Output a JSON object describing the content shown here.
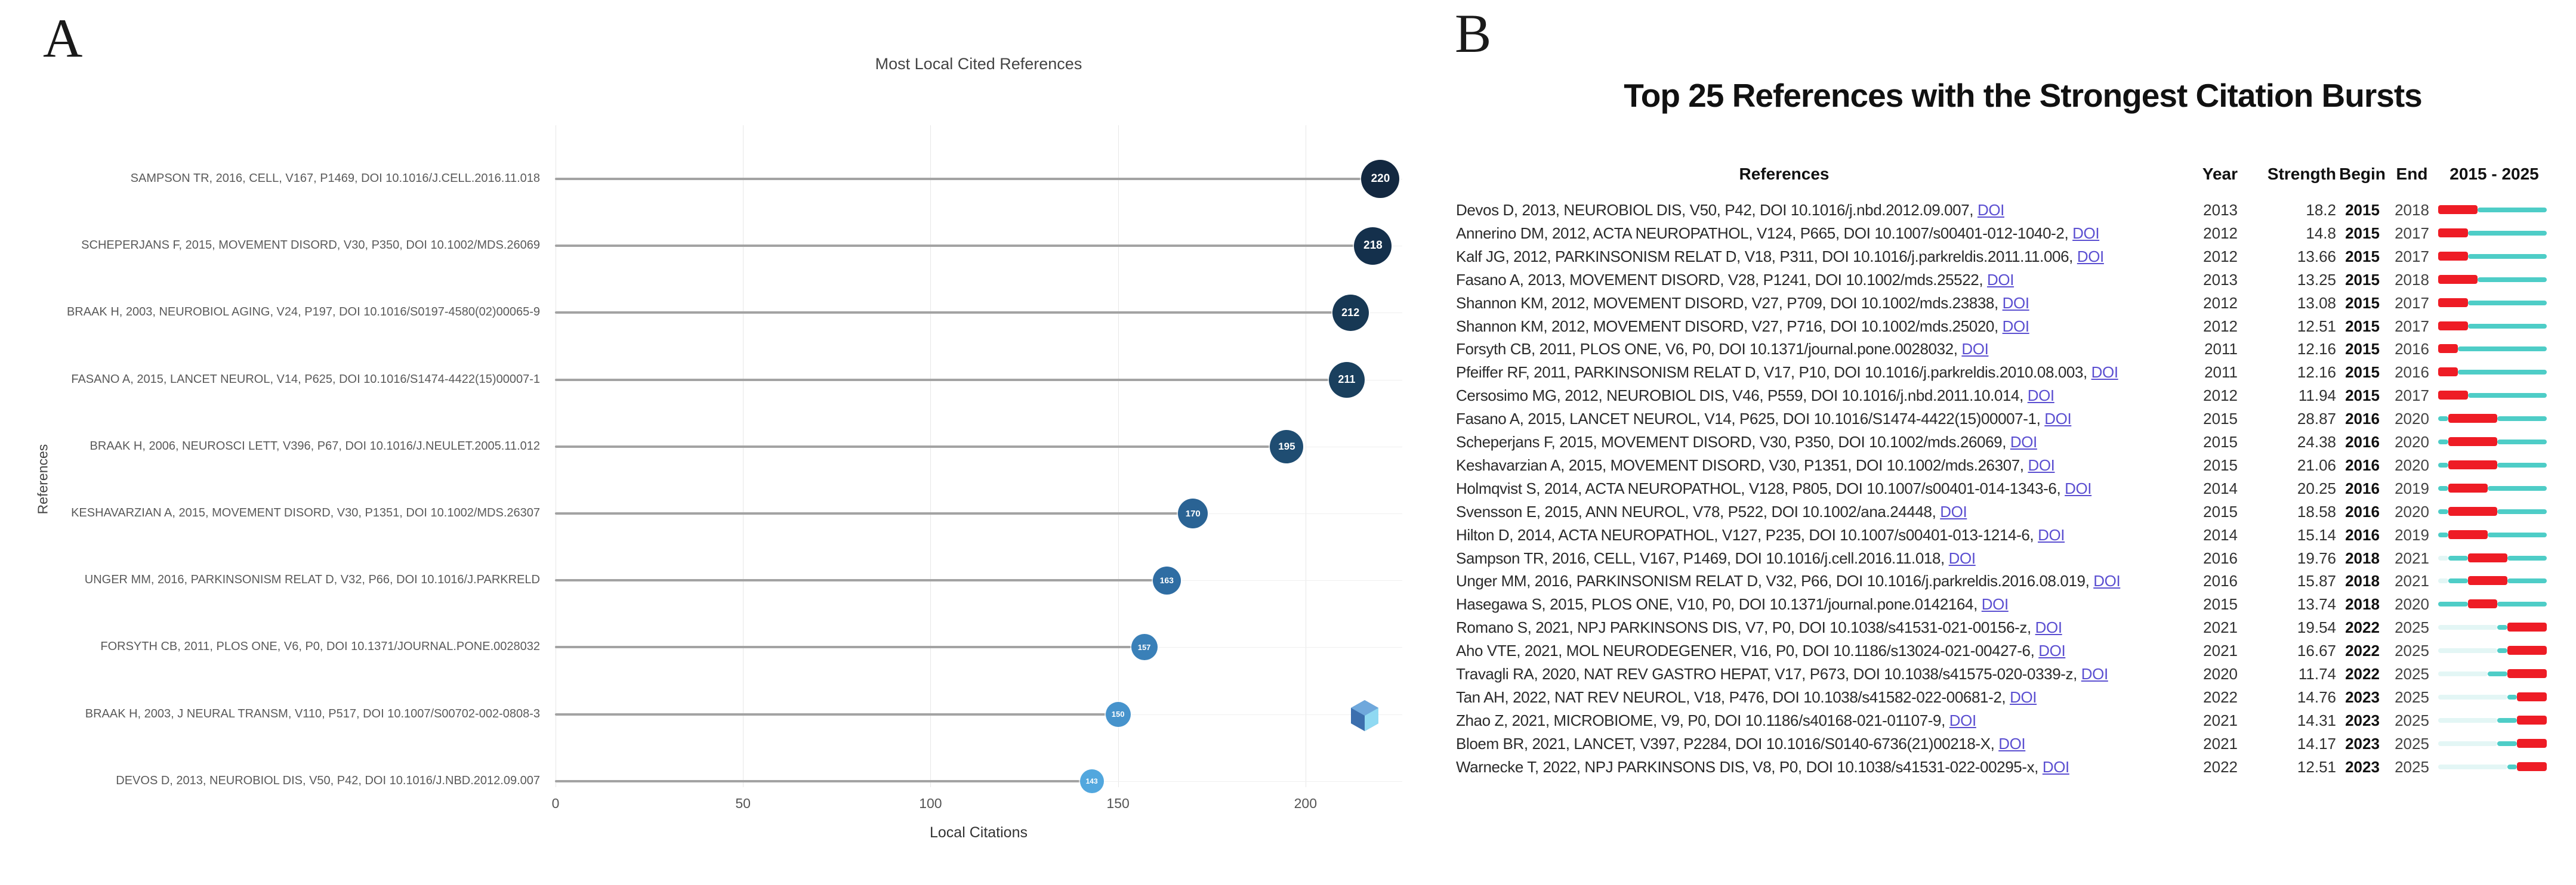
{
  "panelA": {
    "panel_label": "A",
    "title": "Most Local Cited References",
    "x_axis_label": "Local Citations",
    "y_axis_label": "References"
  },
  "panelB": {
    "panel_label": "B",
    "title": "Top 25 References with the Strongest Citation Bursts",
    "columns": {
      "references": "References",
      "year": "Year",
      "strength": "Strength",
      "begin": "Begin",
      "end": "End",
      "range": "2015 - 2025"
    },
    "doi_link_label": "DOI"
  },
  "chart_data": [
    {
      "type": "scatter",
      "subtype": "horizontal-lollipop",
      "title": "Most Local Cited References",
      "xlabel": "Local Citations",
      "ylabel": "References",
      "xlim": [
        0,
        230
      ],
      "xticks": [
        0,
        50,
        100,
        150,
        200
      ],
      "grid": true,
      "categories": [
        "SAMPSON TR, 2016, CELL, V167, P1469, DOI 10.1016/J.CELL.2016.11.018",
        "SCHEPERJANS F, 2015, MOVEMENT DISORD, V30, P350, DOI 10.1002/MDS.26069",
        "BRAAK H, 2003, NEUROBIOL AGING, V24, P197, DOI 10.1016/S0197-4580(02)00065-9",
        "FASANO A, 2015, LANCET NEUROL, V14, P625, DOI 10.1016/S1474-4422(15)00007-1",
        "BRAAK H, 2006, NEUROSCI LETT, V396, P67, DOI 10.1016/J.NEULET.2005.11.012",
        "KESHAVARZIAN A, 2015, MOVEMENT DISORD, V30, P1351, DOI 10.1002/MDS.26307",
        "UNGER MM, 2016, PARKINSONISM RELAT D, V32, P66, DOI 10.1016/J.PARKRELD",
        "FORSYTH CB, 2011, PLOS ONE, V6, P0, DOI 10.1371/JOURNAL.PONE.0028032",
        "BRAAK H, 2003, J NEURAL TRANSM, V110, P517, DOI 10.1007/S00702-002-0808-3",
        "DEVOS D, 2013, NEUROBIOL DIS, V50, P42, DOI 10.1016/J.NBD.2012.09.007"
      ],
      "values": [
        220,
        218,
        212,
        211,
        195,
        170,
        163,
        157,
        150,
        143
      ],
      "dot_colors": [
        "#132840",
        "#14304c",
        "#173854",
        "#1a405e",
        "#1f4d72",
        "#2a6394",
        "#2f6da3",
        "#3a80b8",
        "#4693cc",
        "#52a7de"
      ],
      "dot_sizes": [
        64,
        63,
        61,
        60,
        56,
        50,
        47,
        44,
        42,
        40
      ]
    },
    {
      "type": "table",
      "title": "Top 25 References with the Strongest Citation Bursts",
      "columns": [
        "References",
        "Year",
        "Strength",
        "Begin",
        "End",
        "2015 - 2025"
      ],
      "timeline": {
        "start": 2015,
        "end": 2025,
        "burst_color": "#ee1c25",
        "active_color": "#4ecdc7",
        "pre_publication_color": "#e3f6f5"
      },
      "rows": [
        {
          "ref": "Devos D, 2013, NEUROBIOL DIS, V50, P42, DOI 10.1016/j.nbd.2012.09.007,",
          "year": 2013,
          "strength": "18.2",
          "begin": 2015,
          "end": 2018
        },
        {
          "ref": "Annerino DM, 2012, ACTA NEUROPATHOL, V124, P665, DOI 10.1007/s00401-012-1040-2,",
          "year": 2012,
          "strength": "14.8",
          "begin": 2015,
          "end": 2017
        },
        {
          "ref": "Kalf JG, 2012, PARKINSONISM RELAT D, V18, P311, DOI 10.1016/j.parkreldis.2011.11.006,",
          "year": 2012,
          "strength": "13.66",
          "begin": 2015,
          "end": 2017
        },
        {
          "ref": "Fasano A, 2013, MOVEMENT DISORD, V28, P1241, DOI 10.1002/mds.25522,",
          "year": 2013,
          "strength": "13.25",
          "begin": 2015,
          "end": 2018
        },
        {
          "ref": "Shannon KM, 2012, MOVEMENT DISORD, V27, P709, DOI 10.1002/mds.23838,",
          "year": 2012,
          "strength": "13.08",
          "begin": 2015,
          "end": 2017
        },
        {
          "ref": "Shannon KM, 2012, MOVEMENT DISORD, V27, P716, DOI 10.1002/mds.25020,",
          "year": 2012,
          "strength": "12.51",
          "begin": 2015,
          "end": 2017
        },
        {
          "ref": "Forsyth CB, 2011, PLOS ONE, V6, P0, DOI 10.1371/journal.pone.0028032,",
          "year": 2011,
          "strength": "12.16",
          "begin": 2015,
          "end": 2016
        },
        {
          "ref": "Pfeiffer RF, 2011, PARKINSONISM RELAT D, V17, P10, DOI 10.1016/j.parkreldis.2010.08.003,",
          "year": 2011,
          "strength": "12.16",
          "begin": 2015,
          "end": 2016
        },
        {
          "ref": "Cersosimo MG, 2012, NEUROBIOL DIS, V46, P559, DOI 10.1016/j.nbd.2011.10.014,",
          "year": 2012,
          "strength": "11.94",
          "begin": 2015,
          "end": 2017
        },
        {
          "ref": "Fasano A, 2015, LANCET NEUROL, V14, P625, DOI 10.1016/S1474-4422(15)00007-1,",
          "year": 2015,
          "strength": "28.87",
          "begin": 2016,
          "end": 2020
        },
        {
          "ref": "Scheperjans F, 2015, MOVEMENT DISORD, V30, P350, DOI 10.1002/mds.26069,",
          "year": 2015,
          "strength": "24.38",
          "begin": 2016,
          "end": 2020
        },
        {
          "ref": "Keshavarzian A, 2015, MOVEMENT DISORD, V30, P1351, DOI 10.1002/mds.26307,",
          "year": 2015,
          "strength": "21.06",
          "begin": 2016,
          "end": 2020
        },
        {
          "ref": "Holmqvist S, 2014, ACTA NEUROPATHOL, V128, P805, DOI 10.1007/s00401-014-1343-6,",
          "year": 2014,
          "strength": "20.25",
          "begin": 2016,
          "end": 2019
        },
        {
          "ref": "Svensson E, 2015, ANN NEUROL, V78, P522, DOI 10.1002/ana.24448,",
          "year": 2015,
          "strength": "18.58",
          "begin": 2016,
          "end": 2020
        },
        {
          "ref": "Hilton D, 2014, ACTA NEUROPATHOL, V127, P235, DOI 10.1007/s00401-013-1214-6,",
          "year": 2014,
          "strength": "15.14",
          "begin": 2016,
          "end": 2019
        },
        {
          "ref": "Sampson TR, 2016, CELL, V167, P1469, DOI 10.1016/j.cell.2016.11.018,",
          "year": 2016,
          "strength": "19.76",
          "begin": 2018,
          "end": 2021
        },
        {
          "ref": "Unger MM, 2016, PARKINSONISM RELAT D, V32, P66, DOI 10.1016/j.parkreldis.2016.08.019,",
          "year": 2016,
          "strength": "15.87",
          "begin": 2018,
          "end": 2021
        },
        {
          "ref": "Hasegawa S, 2015, PLOS ONE, V10, P0, DOI 10.1371/journal.pone.0142164,",
          "year": 2015,
          "strength": "13.74",
          "begin": 2018,
          "end": 2020
        },
        {
          "ref": "Romano S, 2021, NPJ PARKINSONS DIS, V7, P0, DOI 10.1038/s41531-021-00156-z,",
          "year": 2021,
          "strength": "19.54",
          "begin": 2022,
          "end": 2025
        },
        {
          "ref": "Aho VTE, 2021, MOL NEURODEGENER, V16, P0, DOI 10.1186/s13024-021-00427-6,",
          "year": 2021,
          "strength": "16.67",
          "begin": 2022,
          "end": 2025
        },
        {
          "ref": "Travagli RA, 2020, NAT REV GASTRO HEPAT, V17, P673, DOI 10.1038/s41575-020-0339-z,",
          "year": 2020,
          "strength": "11.74",
          "begin": 2022,
          "end": 2025
        },
        {
          "ref": "Tan AH, 2022, NAT REV NEUROL, V18, P476, DOI 10.1038/s41582-022-00681-2,",
          "year": 2022,
          "strength": "14.76",
          "begin": 2023,
          "end": 2025
        },
        {
          "ref": "Zhao Z, 2021, MICROBIOME, V9, P0, DOI 10.1186/s40168-021-01107-9,",
          "year": 2021,
          "strength": "14.31",
          "begin": 2023,
          "end": 2025
        },
        {
          "ref": "Bloem BR, 2021, LANCET, V397, P2284, DOI 10.1016/S0140-6736(21)00218-X,",
          "year": 2021,
          "strength": "14.17",
          "begin": 2023,
          "end": 2025
        },
        {
          "ref": "Warnecke T, 2022, NPJ PARKINSONS DIS, V8, P0, DOI 10.1038/s41531-022-00295-x,",
          "year": 2022,
          "strength": "12.51",
          "begin": 2023,
          "end": 2025
        }
      ]
    }
  ]
}
